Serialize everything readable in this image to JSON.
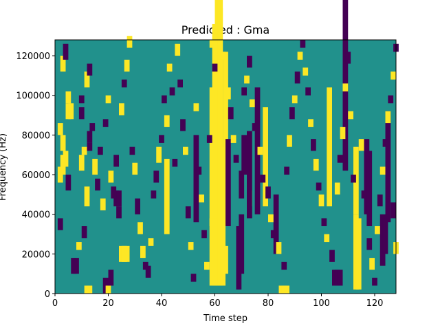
{
  "chart_data": {
    "type": "heatmap",
    "title": "Predicted : Gma",
    "xlabel": "Time step",
    "ylabel": "Frequency (Hz)",
    "xlim": [
      0,
      128
    ],
    "ylim": [
      0,
      128000
    ],
    "x_ticks": [
      0,
      20,
      40,
      60,
      80,
      100,
      120
    ],
    "y_ticks": [
      0,
      20000,
      40000,
      60000,
      80000,
      100000,
      120000
    ],
    "grid": false,
    "colors": {
      "background": "#21918c",
      "high": "#fde725",
      "low": "#440154"
    },
    "value_levels": {
      "low": -1,
      "background": 0,
      "high": 1
    },
    "row_height_hz": 2000,
    "cells": [
      [
        60,
        2,
        62,
        122,
        1
      ],
      [
        61,
        2,
        62,
        124,
        1
      ],
      [
        59,
        2,
        58,
        78,
        1
      ],
      [
        60,
        2,
        58,
        84,
        1
      ],
      [
        61,
        2,
        58,
        86,
        1
      ],
      [
        58,
        2,
        34,
        70,
        1
      ],
      [
        59,
        2,
        34,
        70,
        1
      ],
      [
        60,
        2,
        4,
        70,
        1
      ],
      [
        61,
        2,
        4,
        70,
        1
      ],
      [
        62,
        2,
        4,
        70,
        1
      ],
      [
        63,
        2,
        52,
        70,
        1
      ],
      [
        58,
        2,
        4,
        34,
        1
      ],
      [
        59,
        2,
        4,
        34,
        1
      ],
      [
        62,
        2,
        24,
        38,
        1
      ],
      [
        63,
        2,
        10,
        14,
        1
      ],
      [
        112,
        2,
        2,
        38,
        1
      ],
      [
        113,
        2,
        2,
        36,
        1
      ],
      [
        112,
        2,
        40,
        34,
        1
      ],
      [
        41,
        2,
        30,
        38,
        1
      ],
      [
        52,
        2,
        36,
        44,
        -1
      ],
      [
        64,
        2,
        34,
        44,
        -1
      ],
      [
        68,
        2,
        2,
        32,
        -1
      ],
      [
        69,
        2,
        10,
        30,
        -1
      ],
      [
        69,
        2,
        48,
        14,
        -1
      ],
      [
        70,
        2,
        60,
        20,
        -1
      ],
      [
        72,
        2,
        44,
        8,
        1
      ],
      [
        72,
        2,
        38,
        44,
        -1
      ],
      [
        75,
        2,
        40,
        64,
        -1
      ],
      [
        78,
        2,
        44,
        50,
        1
      ],
      [
        82,
        2,
        20,
        30,
        -1
      ],
      [
        84,
        2,
        0,
        4,
        1
      ],
      [
        85,
        2,
        0,
        4,
        1
      ],
      [
        86,
        2,
        0,
        4,
        1
      ],
      [
        102,
        2,
        44,
        60,
        1
      ],
      [
        104,
        2,
        4,
        8,
        -1
      ],
      [
        105,
        2,
        4,
        8,
        -1
      ],
      [
        106,
        2,
        4,
        8,
        -1
      ],
      [
        108,
        2,
        62,
        94,
        -1
      ],
      [
        116,
        2,
        40,
        38,
        -1
      ],
      [
        117,
        2,
        34,
        38,
        -1
      ],
      [
        122,
        2,
        14,
        26,
        -1
      ],
      [
        123,
        2,
        20,
        18,
        -1
      ],
      [
        124,
        2,
        36,
        56,
        -1
      ],
      [
        18,
        2,
        0,
        8,
        -1
      ],
      [
        19,
        2,
        0,
        4,
        1
      ],
      [
        20,
        2,
        4,
        8,
        -1
      ],
      [
        4,
        2,
        88,
        8,
        1
      ],
      [
        5,
        2,
        88,
        8,
        1
      ],
      [
        22,
        2,
        44,
        8,
        -1
      ],
      [
        23,
        2,
        44,
        8,
        -1
      ],
      [
        11,
        2,
        0,
        4,
        1
      ],
      [
        12,
        2,
        0,
        4,
        1
      ],
      [
        24,
        2,
        16,
        8,
        1
      ],
      [
        25,
        2,
        16,
        8,
        1
      ],
      [
        26,
        2,
        16,
        8,
        1
      ],
      [
        6,
        2,
        10,
        8,
        -1
      ],
      [
        7,
        2,
        10,
        8,
        -1
      ],
      [
        2,
        2,
        112,
        8,
        1
      ],
      [
        3,
        2,
        118,
        8,
        -1
      ],
      [
        3,
        2,
        64,
        8,
        1
      ],
      [
        2,
        2,
        60,
        10,
        1
      ],
      [
        4,
        2,
        52,
        8,
        -1
      ],
      [
        1,
        2,
        56,
        8,
        1
      ],
      [
        1,
        2,
        32,
        6,
        -1
      ],
      [
        4,
        2,
        96,
        6,
        1
      ],
      [
        1,
        2,
        80,
        6,
        1
      ],
      [
        2,
        2,
        72,
        8,
        1
      ],
      [
        9,
        2,
        62,
        8,
        1
      ],
      [
        10,
        2,
        70,
        4,
        1
      ],
      [
        12,
        2,
        76,
        6,
        -1
      ],
      [
        9,
        2,
        88,
        6,
        -1
      ],
      [
        11,
        2,
        104,
        8,
        1
      ],
      [
        12,
        2,
        110,
        6,
        -1
      ],
      [
        9,
        2,
        96,
        4,
        -1
      ],
      [
        8,
        2,
        22,
        4,
        1
      ],
      [
        10,
        2,
        28,
        6,
        -1
      ],
      [
        11,
        2,
        44,
        10,
        1
      ],
      [
        12,
        2,
        72,
        4,
        -1
      ],
      [
        13,
        2,
        82,
        4,
        -1
      ],
      [
        14,
        2,
        60,
        8,
        1
      ],
      [
        15,
        2,
        52,
        6,
        -1
      ],
      [
        16,
        2,
        70,
        4,
        -1
      ],
      [
        17,
        2,
        42,
        6,
        1
      ],
      [
        18,
        2,
        84,
        4,
        -1
      ],
      [
        19,
        2,
        96,
        4,
        1
      ],
      [
        20,
        2,
        56,
        6,
        1
      ],
      [
        21,
        2,
        48,
        6,
        -1
      ],
      [
        22,
        2,
        64,
        6,
        -1
      ],
      [
        23,
        2,
        38,
        6,
        -1
      ],
      [
        24,
        2,
        90,
        6,
        1
      ],
      [
        25,
        2,
        104,
        4,
        -1
      ],
      [
        26,
        2,
        112,
        6,
        1
      ],
      [
        27,
        2,
        124,
        6,
        1
      ],
      [
        28,
        2,
        70,
        4,
        -1
      ],
      [
        29,
        2,
        60,
        6,
        1
      ],
      [
        30,
        2,
        40,
        8,
        -1
      ],
      [
        31,
        2,
        30,
        6,
        1
      ],
      [
        32,
        2,
        18,
        6,
        1
      ],
      [
        33,
        2,
        12,
        4,
        -1
      ],
      [
        34,
        2,
        8,
        6,
        -1
      ],
      [
        35,
        2,
        24,
        4,
        1
      ],
      [
        36,
        2,
        48,
        4,
        -1
      ],
      [
        37,
        2,
        56,
        6,
        -1
      ],
      [
        38,
        2,
        66,
        8,
        1
      ],
      [
        39,
        2,
        76,
        4,
        -1
      ],
      [
        40,
        2,
        96,
        4,
        -1
      ],
      [
        41,
        2,
        84,
        6,
        1
      ],
      [
        42,
        2,
        112,
        4,
        1
      ],
      [
        43,
        2,
        100,
        4,
        -1
      ],
      [
        44,
        2,
        64,
        4,
        -1
      ],
      [
        45,
        2,
        120,
        6,
        1
      ],
      [
        46,
        2,
        104,
        4,
        -1
      ],
      [
        47,
        2,
        82,
        6,
        -1
      ],
      [
        48,
        2,
        70,
        4,
        1
      ],
      [
        49,
        2,
        38,
        6,
        -1
      ],
      [
        50,
        2,
        22,
        4,
        1
      ],
      [
        51,
        2,
        6,
        4,
        -1
      ],
      [
        52,
        2,
        92,
        4,
        1
      ],
      [
        53,
        2,
        60,
        4,
        -1
      ],
      [
        54,
        2,
        46,
        4,
        1
      ],
      [
        55,
        2,
        28,
        4,
        -1
      ],
      [
        56,
        2,
        12,
        4,
        1
      ],
      [
        57,
        2,
        76,
        4,
        -1
      ],
      [
        58,
        2,
        124,
        4,
        1
      ],
      [
        59,
        2,
        112,
        4,
        -1
      ],
      [
        62,
        2,
        118,
        4,
        1
      ],
      [
        64,
        2,
        98,
        6,
        1
      ],
      [
        65,
        2,
        88,
        6,
        -1
      ],
      [
        66,
        2,
        76,
        4,
        1
      ],
      [
        67,
        2,
        66,
        4,
        -1
      ],
      [
        70,
        2,
        100,
        4,
        -1
      ],
      [
        71,
        2,
        106,
        4,
        1
      ],
      [
        72,
        2,
        114,
        6,
        -1
      ],
      [
        73,
        2,
        94,
        4,
        1
      ],
      [
        74,
        2,
        82,
        4,
        -1
      ],
      [
        76,
        2,
        70,
        4,
        1
      ],
      [
        77,
        2,
        56,
        4,
        -1
      ],
      [
        79,
        2,
        48,
        6,
        -1
      ],
      [
        80,
        2,
        36,
        4,
        1
      ],
      [
        81,
        2,
        28,
        4,
        -1
      ],
      [
        83,
        2,
        20,
        6,
        1
      ],
      [
        85,
        2,
        12,
        4,
        -1
      ],
      [
        86,
        2,
        60,
        4,
        -1
      ],
      [
        87,
        2,
        74,
        6,
        1
      ],
      [
        88,
        2,
        88,
        6,
        -1
      ],
      [
        89,
        2,
        96,
        4,
        1
      ],
      [
        90,
        2,
        106,
        6,
        -1
      ],
      [
        91,
        2,
        118,
        4,
        1
      ],
      [
        92,
        2,
        124,
        4,
        -1
      ],
      [
        93,
        2,
        110,
        4,
        1
      ],
      [
        94,
        2,
        100,
        4,
        -1
      ],
      [
        95,
        2,
        84,
        4,
        1
      ],
      [
        96,
        2,
        72,
        6,
        -1
      ],
      [
        97,
        2,
        62,
        6,
        1
      ],
      [
        98,
        2,
        52,
        4,
        -1
      ],
      [
        99,
        2,
        44,
        6,
        1
      ],
      [
        100,
        2,
        34,
        4,
        -1
      ],
      [
        101,
        2,
        26,
        4,
        1
      ],
      [
        103,
        2,
        16,
        6,
        -1
      ],
      [
        105,
        2,
        50,
        6,
        1
      ],
      [
        106,
        2,
        66,
        4,
        -1
      ],
      [
        107,
        2,
        78,
        6,
        1
      ],
      [
        108,
        2,
        102,
        4,
        1
      ],
      [
        109,
        2,
        116,
        6,
        -1
      ],
      [
        110,
        2,
        88,
        4,
        1
      ],
      [
        111,
        2,
        56,
        4,
        -1
      ],
      [
        114,
        2,
        72,
        6,
        1
      ],
      [
        115,
        2,
        48,
        4,
        -1
      ],
      [
        117,
        2,
        22,
        6,
        -1
      ],
      [
        118,
        2,
        12,
        6,
        1
      ],
      [
        119,
        2,
        4,
        4,
        -1
      ],
      [
        120,
        2,
        30,
        4,
        1
      ],
      [
        121,
        2,
        44,
        6,
        -1
      ],
      [
        122,
        2,
        60,
        4,
        1
      ],
      [
        123,
        2,
        74,
        4,
        -1
      ],
      [
        124,
        2,
        86,
        6,
        1
      ],
      [
        125,
        2,
        96,
        4,
        -1
      ],
      [
        126,
        2,
        108,
        4,
        1
      ],
      [
        127,
        2,
        122,
        4,
        -1
      ],
      [
        126,
        2,
        38,
        8,
        -1
      ],
      [
        127,
        2,
        20,
        6,
        1
      ]
    ]
  }
}
